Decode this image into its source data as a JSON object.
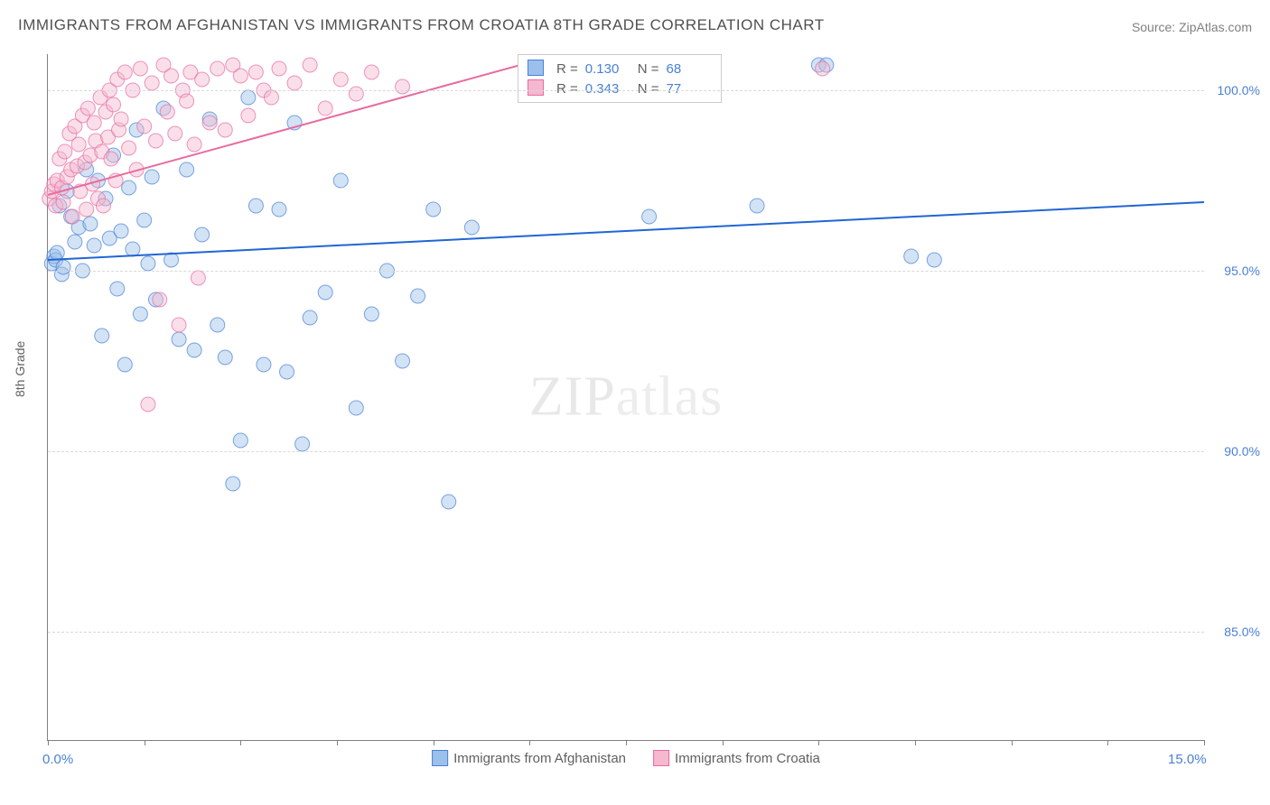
{
  "title": "IMMIGRANTS FROM AFGHANISTAN VS IMMIGRANTS FROM CROATIA 8TH GRADE CORRELATION CHART",
  "source_label": "Source: ",
  "source_name": "ZipAtlas.com",
  "y_axis_label": "8th Grade",
  "watermark": {
    "bold": "ZIP",
    "light": "atlas"
  },
  "chart": {
    "type": "scatter",
    "xlim": [
      0,
      15
    ],
    "ylim": [
      82,
      101
    ],
    "x_ticks": [
      0,
      1.25,
      2.5,
      3.75,
      5,
      6.25,
      7.5,
      8.75,
      10,
      11.25,
      12.5,
      13.75,
      15
    ],
    "x_tick_labels": {
      "0": "0.0%",
      "15": "15.0%"
    },
    "y_gridlines": [
      85,
      90,
      95,
      100
    ],
    "y_tick_labels": {
      "85": "85.0%",
      "90": "90.0%",
      "95": "95.0%",
      "100": "100.0%"
    },
    "background_color": "#ffffff",
    "grid_color": "#d8d8d8",
    "marker_radius": 8,
    "marker_opacity": 0.45,
    "series": [
      {
        "name": "Immigrants from Afghanistan",
        "color_fill": "#9cc0ec",
        "color_stroke": "#4a80d6",
        "line_color": "#2066d4",
        "R": "0.130",
        "N": "68",
        "trend": {
          "x1": 0,
          "y1": 95.3,
          "x2": 15,
          "y2": 96.9
        },
        "points": [
          [
            0.05,
            95.2
          ],
          [
            0.08,
            95.4
          ],
          [
            0.1,
            95.3
          ],
          [
            0.12,
            95.5
          ],
          [
            0.15,
            96.8
          ],
          [
            0.18,
            94.9
          ],
          [
            0.2,
            95.1
          ],
          [
            0.25,
            97.2
          ],
          [
            0.3,
            96.5
          ],
          [
            0.35,
            95.8
          ],
          [
            0.4,
            96.2
          ],
          [
            0.45,
            95.0
          ],
          [
            0.5,
            97.8
          ],
          [
            0.55,
            96.3
          ],
          [
            0.6,
            95.7
          ],
          [
            0.65,
            97.5
          ],
          [
            0.7,
            93.2
          ],
          [
            0.75,
            97.0
          ],
          [
            0.8,
            95.9
          ],
          [
            0.85,
            98.2
          ],
          [
            0.9,
            94.5
          ],
          [
            0.95,
            96.1
          ],
          [
            1.0,
            92.4
          ],
          [
            1.05,
            97.3
          ],
          [
            1.1,
            95.6
          ],
          [
            1.15,
            98.9
          ],
          [
            1.2,
            93.8
          ],
          [
            1.25,
            96.4
          ],
          [
            1.3,
            95.2
          ],
          [
            1.35,
            97.6
          ],
          [
            1.4,
            94.2
          ],
          [
            1.5,
            99.5
          ],
          [
            1.6,
            95.3
          ],
          [
            1.7,
            93.1
          ],
          [
            1.8,
            97.8
          ],
          [
            1.9,
            92.8
          ],
          [
            2.0,
            96.0
          ],
          [
            2.1,
            99.2
          ],
          [
            2.2,
            93.5
          ],
          [
            2.3,
            92.6
          ],
          [
            2.4,
            89.1
          ],
          [
            2.5,
            90.3
          ],
          [
            2.6,
            99.8
          ],
          [
            2.7,
            96.8
          ],
          [
            2.8,
            92.4
          ],
          [
            3.0,
            96.7
          ],
          [
            3.1,
            92.2
          ],
          [
            3.2,
            99.1
          ],
          [
            3.3,
            90.2
          ],
          [
            3.4,
            93.7
          ],
          [
            3.6,
            94.4
          ],
          [
            3.8,
            97.5
          ],
          [
            4.0,
            91.2
          ],
          [
            4.2,
            93.8
          ],
          [
            4.4,
            95.0
          ],
          [
            4.6,
            92.5
          ],
          [
            4.8,
            94.3
          ],
          [
            5.0,
            96.7
          ],
          [
            5.2,
            88.6
          ],
          [
            5.5,
            96.2
          ],
          [
            6.2,
            100.5
          ],
          [
            6.5,
            100.7
          ],
          [
            7.8,
            96.5
          ],
          [
            9.2,
            96.8
          ],
          [
            10.0,
            100.7
          ],
          [
            10.1,
            100.7
          ],
          [
            11.5,
            95.3
          ],
          [
            11.2,
            95.4
          ]
        ]
      },
      {
        "name": "Immigrants from Croatia",
        "color_fill": "#f5b8ce",
        "color_stroke": "#e76ba0",
        "line_color": "#e76ba0",
        "R": "0.343",
        "N": "77",
        "trend": {
          "x1": 0,
          "y1": 97.1,
          "x2": 6.3,
          "y2": 100.8
        },
        "points": [
          [
            0.02,
            97.0
          ],
          [
            0.05,
            97.2
          ],
          [
            0.08,
            97.4
          ],
          [
            0.1,
            96.8
          ],
          [
            0.12,
            97.5
          ],
          [
            0.15,
            98.1
          ],
          [
            0.18,
            97.3
          ],
          [
            0.2,
            96.9
          ],
          [
            0.22,
            98.3
          ],
          [
            0.25,
            97.6
          ],
          [
            0.28,
            98.8
          ],
          [
            0.3,
            97.8
          ],
          [
            0.32,
            96.5
          ],
          [
            0.35,
            99.0
          ],
          [
            0.38,
            97.9
          ],
          [
            0.4,
            98.5
          ],
          [
            0.42,
            97.2
          ],
          [
            0.45,
            99.3
          ],
          [
            0.48,
            98.0
          ],
          [
            0.5,
            96.7
          ],
          [
            0.52,
            99.5
          ],
          [
            0.55,
            98.2
          ],
          [
            0.58,
            97.4
          ],
          [
            0.6,
            99.1
          ],
          [
            0.62,
            98.6
          ],
          [
            0.65,
            97.0
          ],
          [
            0.68,
            99.8
          ],
          [
            0.7,
            98.3
          ],
          [
            0.72,
            96.8
          ],
          [
            0.75,
            99.4
          ],
          [
            0.78,
            98.7
          ],
          [
            0.8,
            100.0
          ],
          [
            0.82,
            98.1
          ],
          [
            0.85,
            99.6
          ],
          [
            0.88,
            97.5
          ],
          [
            0.9,
            100.3
          ],
          [
            0.92,
            98.9
          ],
          [
            0.95,
            99.2
          ],
          [
            1.0,
            100.5
          ],
          [
            1.05,
            98.4
          ],
          [
            1.1,
            100.0
          ],
          [
            1.15,
            97.8
          ],
          [
            1.2,
            100.6
          ],
          [
            1.25,
            99.0
          ],
          [
            1.3,
            91.3
          ],
          [
            1.35,
            100.2
          ],
          [
            1.4,
            98.6
          ],
          [
            1.45,
            94.2
          ],
          [
            1.5,
            100.7
          ],
          [
            1.55,
            99.4
          ],
          [
            1.6,
            100.4
          ],
          [
            1.65,
            98.8
          ],
          [
            1.7,
            93.5
          ],
          [
            1.75,
            100.0
          ],
          [
            1.8,
            99.7
          ],
          [
            1.85,
            100.5
          ],
          [
            1.9,
            98.5
          ],
          [
            1.95,
            94.8
          ],
          [
            2.0,
            100.3
          ],
          [
            2.1,
            99.1
          ],
          [
            2.2,
            100.6
          ],
          [
            2.3,
            98.9
          ],
          [
            2.4,
            100.7
          ],
          [
            2.5,
            100.4
          ],
          [
            2.6,
            99.3
          ],
          [
            2.7,
            100.5
          ],
          [
            2.8,
            100.0
          ],
          [
            2.9,
            99.8
          ],
          [
            3.0,
            100.6
          ],
          [
            3.2,
            100.2
          ],
          [
            3.4,
            100.7
          ],
          [
            3.6,
            99.5
          ],
          [
            3.8,
            100.3
          ],
          [
            4.0,
            99.9
          ],
          [
            4.2,
            100.5
          ],
          [
            4.6,
            100.1
          ],
          [
            10.05,
            100.6
          ]
        ]
      }
    ]
  },
  "legend_labels": {
    "R_eq": "R = ",
    "N_eq": "N = "
  }
}
